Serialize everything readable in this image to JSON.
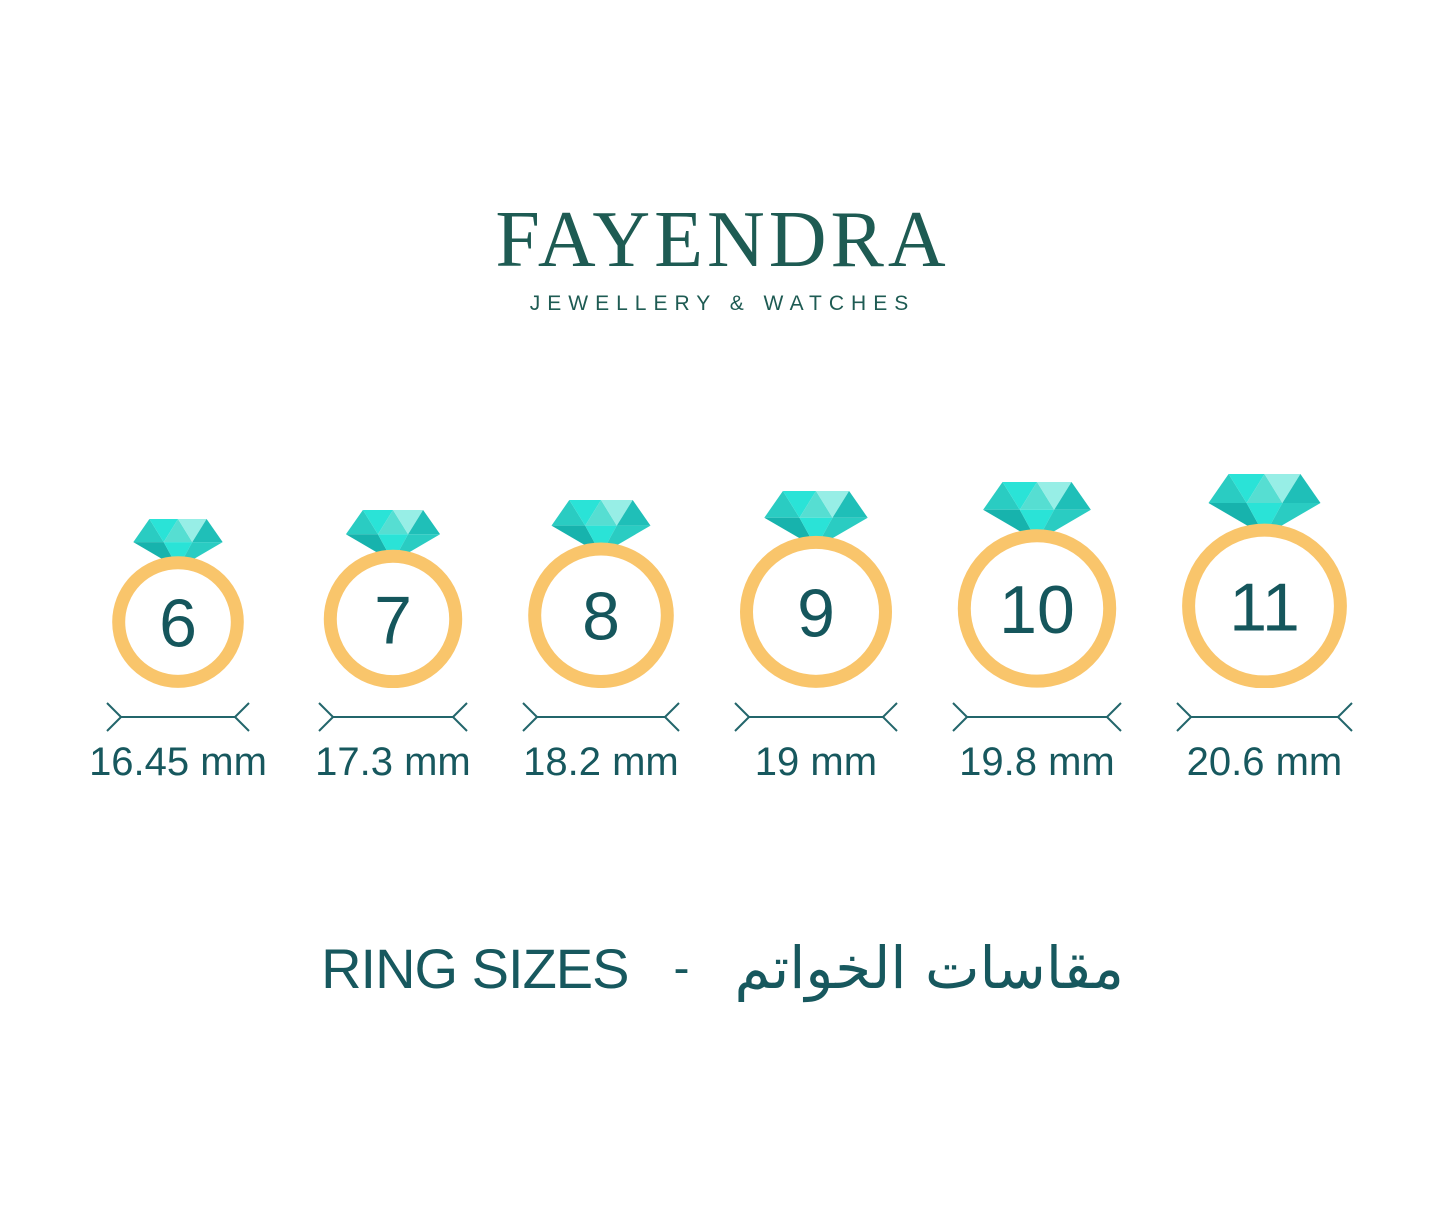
{
  "brand": {
    "name": "FAYENDRA",
    "subtitle": "JEWELLERY & WATCHES",
    "color": "#1e5b53"
  },
  "rings": [
    {
      "size": "6",
      "diameter_mm": 16.45,
      "diameter_label": "16.45 mm"
    },
    {
      "size": "7",
      "diameter_mm": 17.3,
      "diameter_label": "17.3 mm"
    },
    {
      "size": "8",
      "diameter_mm": 18.2,
      "diameter_label": "18.2 mm"
    },
    {
      "size": "9",
      "diameter_mm": 19,
      "diameter_label": "19 mm"
    },
    {
      "size": "10",
      "diameter_mm": 19.8,
      "diameter_label": "19.8 mm"
    },
    {
      "size": "11",
      "diameter_mm": 20.6,
      "diameter_label": "20.6 mm"
    }
  ],
  "footer": {
    "title_en": "RING SIZES",
    "separator": "-",
    "title_ar": "مقاسات الخواتم"
  },
  "colors": {
    "band": "#f9c56b",
    "number": "#15565c",
    "label": "#17585e",
    "arrow": "#23666b",
    "diamond_bright": "#2ae3d7",
    "diamond_light": "#97eee6",
    "diamond_pale": "#aef2ec",
    "diamond_mid": "#2accc2",
    "diamond_mid2": "#56ded2",
    "diamond_dark": "#1fbfb8",
    "diamond_darker": "#17b3ad"
  }
}
